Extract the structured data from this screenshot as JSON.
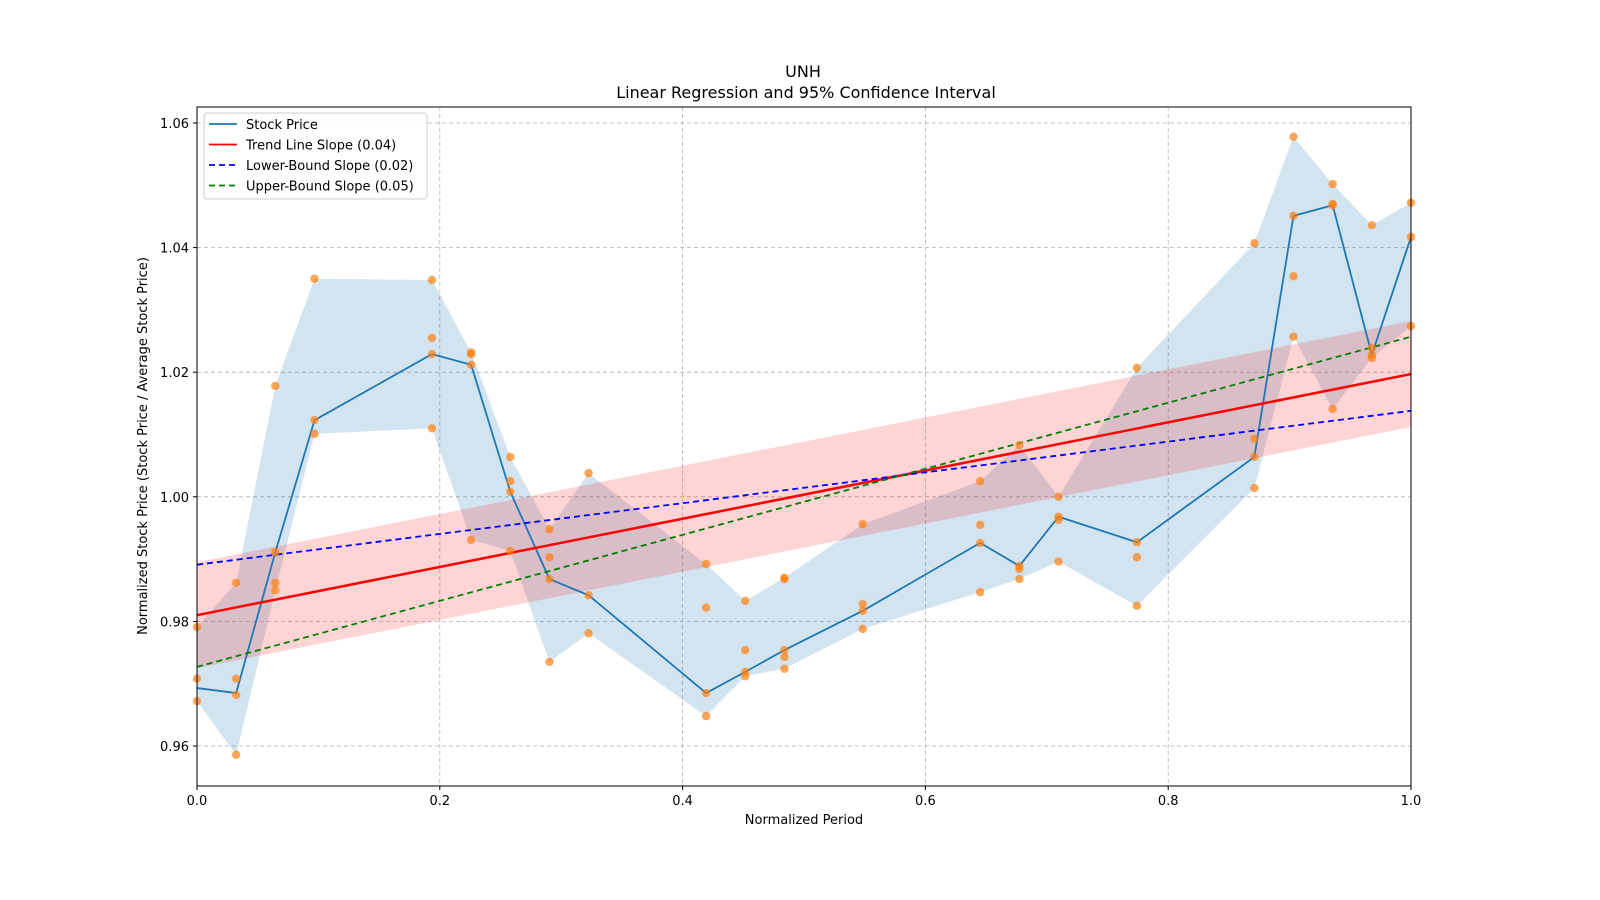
{
  "chart_data": {
    "type": "line",
    "title": "UNH",
    "subtitle": "Linear Regression and 95% Confidence Interval",
    "xlabel": "Normalized Period",
    "ylabel": "Normalized Stock Price (Stock Price / Average Stock Price)",
    "xlim": [
      0.0,
      1.0
    ],
    "ylim": [
      0.9535,
      1.0625
    ],
    "xticks": [
      0.0,
      0.2,
      0.4,
      0.6,
      0.8,
      1.0
    ],
    "xtick_labels": [
      "0.0",
      "0.2",
      "0.4",
      "0.6",
      "0.8",
      "1.0"
    ],
    "yticks": [
      0.96,
      0.98,
      1.0,
      1.02,
      1.04,
      1.06
    ],
    "ytick_labels": [
      "0.96",
      "0.98",
      "1.00",
      "1.02",
      "1.04",
      "1.06"
    ],
    "grid": true,
    "legend_position": "upper-left",
    "legend": [
      {
        "label": "Stock Price",
        "color": "#1f77b4",
        "style": "solid"
      },
      {
        "label": "Trend Line Slope (0.04)",
        "color": "#ff0000",
        "style": "solid"
      },
      {
        "label": "Lower-Bound Slope (0.02)",
        "color": "#0000ff",
        "style": "dashed"
      },
      {
        "label": "Upper-Bound Slope (0.05)",
        "color": "#008000",
        "style": "dashed"
      }
    ],
    "x_steps": 31,
    "stock_price": {
      "name": "Stock Price",
      "x_index": [
        0,
        1,
        2,
        3,
        6,
        7,
        8,
        9,
        10,
        13,
        14,
        15,
        17,
        20,
        21,
        22,
        24,
        27,
        28,
        29,
        30,
        31
      ],
      "close": [
        0.9693,
        0.9685,
        0.9911,
        1.0123,
        1.0229,
        1.0212,
        1.0008,
        0.9868,
        0.9842,
        0.9685,
        0.9719,
        0.9754,
        0.9817,
        0.9926,
        0.9889,
        0.9968,
        0.9927,
        1.0064,
        1.0451,
        1.0468,
        1.0228,
        1.0417
      ],
      "high": [
        0.9791,
        0.9862,
        1.0178,
        1.035,
        1.0348,
        1.0232,
        1.0064,
        0.9948,
        1.0038,
        0.9892,
        0.9833,
        0.987,
        0.9956,
        1.0025,
        1.0083,
        1.0,
        1.0207,
        1.0407,
        1.0578,
        1.0502,
        1.0436,
        1.0472
      ],
      "low": [
        0.9672,
        0.9586,
        0.985,
        1.0101,
        1.011,
        0.9931,
        0.9913,
        0.9735,
        0.9781,
        0.9648,
        0.9712,
        0.9724,
        0.9788,
        0.9847,
        0.9868,
        0.9896,
        0.9825,
        1.0014,
        1.0257,
        1.0141,
        1.0223,
        1.0274
      ]
    },
    "scatter_points": [
      [
        0,
        0.9791
      ],
      [
        0,
        0.9708
      ],
      [
        0,
        0.9672
      ],
      [
        1,
        0.9862
      ],
      [
        1,
        0.9708
      ],
      [
        1,
        0.9682
      ],
      [
        1,
        0.9586
      ],
      [
        2,
        1.0178
      ],
      [
        2,
        0.9911
      ],
      [
        2,
        0.9862
      ],
      [
        2,
        0.985
      ],
      [
        3,
        1.035
      ],
      [
        3,
        1.0123
      ],
      [
        3,
        1.0101
      ],
      [
        6,
        1.0348
      ],
      [
        6,
        1.0255
      ],
      [
        6,
        1.0229
      ],
      [
        6,
        1.011
      ],
      [
        7,
        1.0232
      ],
      [
        7,
        1.0229
      ],
      [
        7,
        1.0212
      ],
      [
        7,
        0.9931
      ],
      [
        8,
        1.0064
      ],
      [
        8,
        1.0025
      ],
      [
        8,
        1.0008
      ],
      [
        8,
        0.9913
      ],
      [
        9,
        0.9948
      ],
      [
        9,
        0.9903
      ],
      [
        9,
        0.9868
      ],
      [
        9,
        0.9735
      ],
      [
        10,
        1.0038
      ],
      [
        10,
        0.9842
      ],
      [
        10,
        0.9781
      ],
      [
        13,
        0.9892
      ],
      [
        13,
        0.9822
      ],
      [
        13,
        0.9685
      ],
      [
        13,
        0.9648
      ],
      [
        14,
        0.9833
      ],
      [
        14,
        0.9754
      ],
      [
        14,
        0.9719
      ],
      [
        14,
        0.9712
      ],
      [
        15,
        0.987
      ],
      [
        15,
        0.9868
      ],
      [
        15,
        0.9754
      ],
      [
        15,
        0.9743
      ],
      [
        15,
        0.9724
      ],
      [
        17,
        0.9956
      ],
      [
        17,
        0.9828
      ],
      [
        17,
        0.9817
      ],
      [
        17,
        0.9788
      ],
      [
        20,
        1.0025
      ],
      [
        20,
        0.9955
      ],
      [
        20,
        0.9926
      ],
      [
        20,
        0.9847
      ],
      [
        21,
        1.0083
      ],
      [
        21,
        0.9889
      ],
      [
        21,
        0.9884
      ],
      [
        21,
        0.9868
      ],
      [
        22,
        1.0
      ],
      [
        22,
        0.9968
      ],
      [
        22,
        0.9963
      ],
      [
        22,
        0.9896
      ],
      [
        24,
        1.0207
      ],
      [
        24,
        0.9927
      ],
      [
        24,
        0.9903
      ],
      [
        24,
        0.9825
      ],
      [
        27,
        1.0407
      ],
      [
        27,
        1.0093
      ],
      [
        27,
        1.0064
      ],
      [
        27,
        1.0014
      ],
      [
        28,
        1.0578
      ],
      [
        28,
        1.0451
      ],
      [
        28,
        1.0354
      ],
      [
        28,
        1.0257
      ],
      [
        29,
        1.0502
      ],
      [
        29,
        1.047
      ],
      [
        29,
        1.0468
      ],
      [
        29,
        1.0141
      ],
      [
        30,
        1.0436
      ],
      [
        30,
        1.0239
      ],
      [
        30,
        1.0228
      ],
      [
        30,
        1.0223
      ],
      [
        31,
        1.0472
      ],
      [
        31,
        1.0417
      ],
      [
        31,
        1.0274
      ]
    ],
    "trend_line": {
      "name": "Trend Line Slope (0.04)",
      "y_start": 0.981,
      "y_end": 1.0197,
      "ci_halfwidth": 0.0085
    },
    "lower_bound": {
      "name": "Lower-Bound Slope (0.02)",
      "y_start": 0.9891,
      "y_end": 1.0138
    },
    "upper_bound": {
      "name": "Upper-Bound Slope (0.05)",
      "y_start": 0.9727,
      "y_end": 1.0257
    },
    "colors": {
      "price": "#1f77b4",
      "price_band": "#1f77b4",
      "points": "#ff7f0e",
      "trend": "#ff0000",
      "trend_band": "#ffb3b3",
      "lower": "#0000ff",
      "upper": "#008000"
    }
  }
}
